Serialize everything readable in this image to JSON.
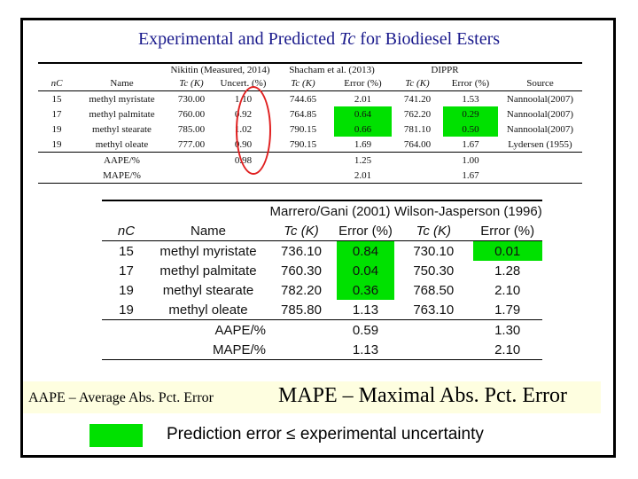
{
  "title": {
    "prefix": "Experimental and Predicted ",
    "symbol": "Tc",
    "suffix": " for Biodiesel Esters"
  },
  "table1": {
    "group_headers": [
      "Nikitin (Measured, 2014)",
      "Shacham et al. (2013)",
      "DIPPR"
    ],
    "columns": [
      "nC",
      "Name",
      "Tc (K)",
      "Uncert. (%)",
      "Tc (K)",
      "Error (%)",
      "Tc (K)",
      "Error (%)",
      "Source"
    ],
    "rows": [
      {
        "nc": "15",
        "name": "methyl myristate",
        "tc1": "730.00",
        "unc": "1.10",
        "tc2": "744.65",
        "err2": "2.01",
        "tc3": "741.20",
        "err3": "1.53",
        "src": "Nannoolal(2007)"
      },
      {
        "nc": "17",
        "name": "methyl palmitate",
        "tc1": "760.00",
        "unc": "0.92",
        "tc2": "764.85",
        "err2": "0.64",
        "tc3": "762.20",
        "err3": "0.29",
        "src": "Nannoolal(2007)"
      },
      {
        "nc": "19",
        "name": "methyl stearate",
        "tc1": "785.00",
        "unc": "1.02",
        "tc2": "790.15",
        "err2": "0.66",
        "tc3": "781.10",
        "err3": "0.50",
        "src": "Nannoolal(2007)"
      },
      {
        "nc": "19",
        "name": "methyl oleate",
        "tc1": "777.00",
        "unc": "0.90",
        "tc2": "790.15",
        "err2": "1.69",
        "tc3": "764.00",
        "err3": "1.67",
        "src": "Lydersen (1955)"
      }
    ],
    "summary": [
      {
        "label": "AAPE/%",
        "unc": "0.98",
        "err2": "1.25",
        "err3": "1.00"
      },
      {
        "label": "MAPE/%",
        "unc": "",
        "err2": "2.01",
        "err3": "1.67"
      }
    ]
  },
  "table2": {
    "group_headers": [
      "Marrero/Gani (2001)",
      "Wilson-Jasperson (1996)"
    ],
    "columns": [
      "nC",
      "Name",
      "Tc (K)",
      "Error (%)",
      "Tc (K)",
      "Error (%)"
    ],
    "rows": [
      {
        "nc": "15",
        "name": "methyl myristate",
        "tc1": "736.10",
        "err1": "0.84",
        "tc2": "730.10",
        "err2": "0.01"
      },
      {
        "nc": "17",
        "name": "methyl palmitate",
        "tc1": "760.30",
        "err1": "0.04",
        "tc2": "750.30",
        "err2": "1.28"
      },
      {
        "nc": "19",
        "name": "methyl stearate",
        "tc1": "782.20",
        "err1": "0.36",
        "tc2": "768.50",
        "err2": "2.10"
      },
      {
        "nc": "19",
        "name": "methyl oleate",
        "tc1": "785.80",
        "err1": "1.13",
        "tc2": "763.10",
        "err2": "1.79"
      }
    ],
    "summary": [
      {
        "label": "AAPE/%",
        "err1": "0.59",
        "err2": "1.30"
      },
      {
        "label": "MAPE/%",
        "err1": "1.13",
        "err2": "2.10"
      }
    ]
  },
  "footnote": {
    "aape": "AAPE – Average Abs.  Pct. Error",
    "mape": "MAPE – Maximal Abs. Pct. Error"
  },
  "legend": {
    "text": "Prediction error ≤ experimental uncertainty",
    "color": "#00e100"
  },
  "colors": {
    "title": "#1a1a8c",
    "highlight": "#00e100",
    "circle": "#e02020",
    "band": "#fefee0"
  }
}
